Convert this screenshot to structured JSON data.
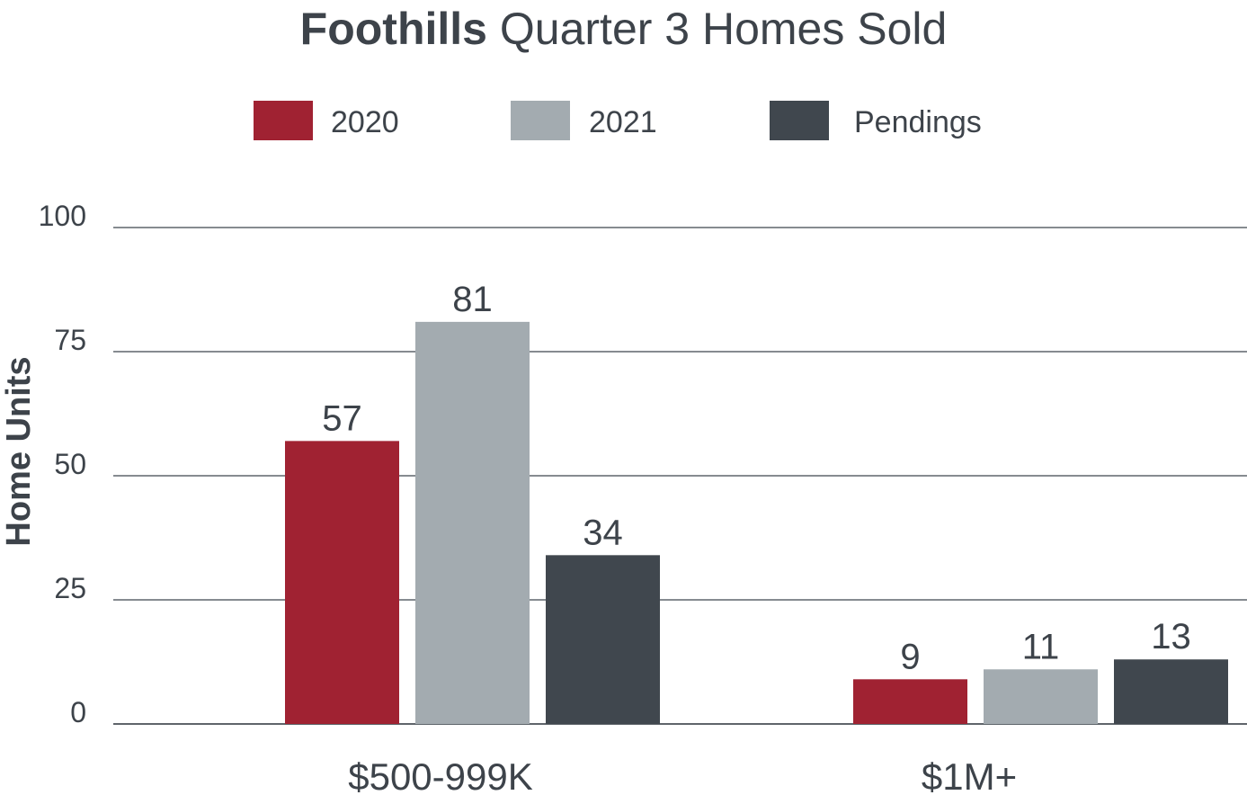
{
  "chart_data": {
    "type": "bar",
    "title_bold": "Foothills",
    "title_rest": "Quarter 3 Homes Sold",
    "ylabel": "Home Units",
    "xlabel": "",
    "ylim": [
      0,
      100
    ],
    "yticks": [
      0,
      25,
      50,
      75,
      100
    ],
    "ytick_labels": [
      "0",
      "25",
      "50",
      "75",
      "100"
    ],
    "grid": true,
    "legend_position": "top-center",
    "categories": [
      "$500-999K",
      "$1M+"
    ],
    "series": [
      {
        "name": "2020",
        "color": "#a02232",
        "values": [
          57,
          9
        ]
      },
      {
        "name": "2021",
        "color": "#a3abb0",
        "values": [
          81,
          11
        ]
      },
      {
        "name": "Pendings",
        "color": "#40474e",
        "values": [
          34,
          13
        ]
      }
    ],
    "value_labels": [
      [
        "57",
        "9"
      ],
      [
        "81",
        "11"
      ],
      [
        "34",
        "13"
      ]
    ]
  }
}
